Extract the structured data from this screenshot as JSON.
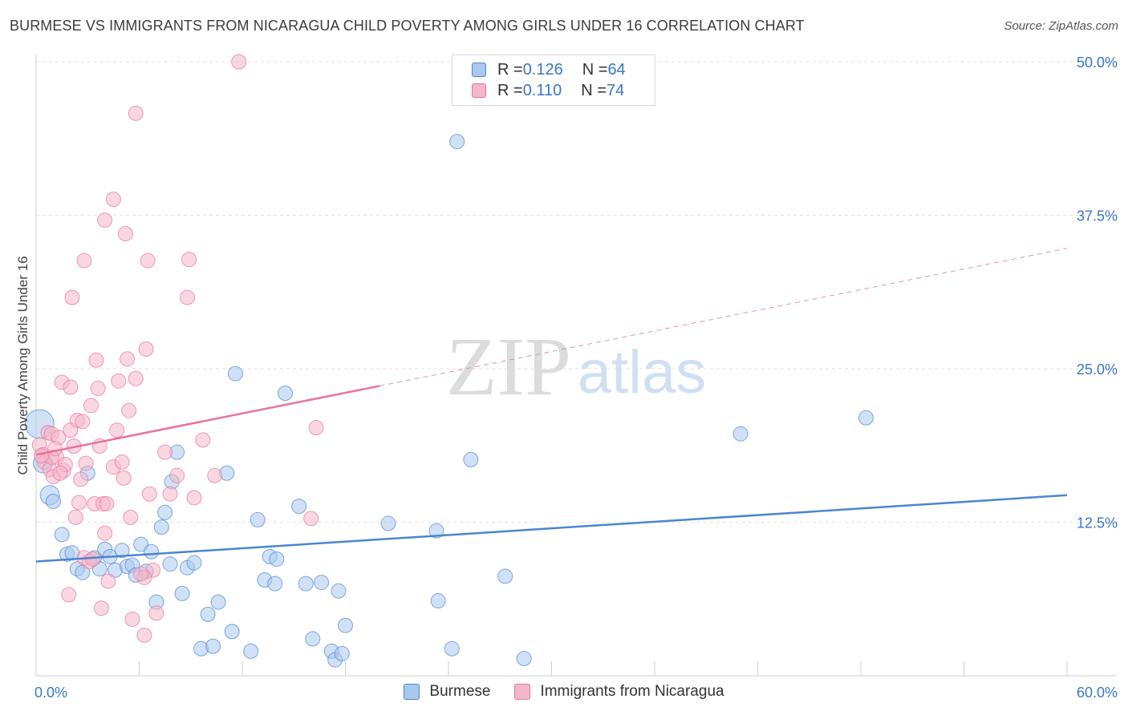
{
  "header": {
    "title": "BURMESE VS IMMIGRANTS FROM NICARAGUA CHILD POVERTY AMONG GIRLS UNDER 16 CORRELATION CHART",
    "source": "Source: ZipAtlas.com"
  },
  "watermark": {
    "zip": "ZIP",
    "atlas": "atlas"
  },
  "legend_stats": [
    {
      "r_label": "R = ",
      "r_value": "0.126",
      "n_label": "N = ",
      "n_value": "64",
      "color": "#a9c8ef"
    },
    {
      "r_label": "R = ",
      "r_value": "0.110",
      "n_label": "N = ",
      "n_value": "74",
      "color": "#f4b6c9"
    }
  ],
  "chart_data": {
    "type": "scatter",
    "title": "BURMESE VS IMMIGRANTS FROM NICARAGUA CHILD POVERTY AMONG GIRLS UNDER 16 CORRELATION CHART",
    "xlabel": "",
    "ylabel": "Child Poverty Among Girls Under 16",
    "xlim": [
      0,
      60
    ],
    "ylim": [
      0,
      50
    ],
    "x_tick_labels": [
      "0.0%",
      "60.0%"
    ],
    "y_ticks": [
      12.5,
      25.0,
      37.5,
      50.0
    ],
    "y_tick_labels": [
      "12.5%",
      "25.0%",
      "37.5%",
      "50.0%"
    ],
    "grid": true,
    "legend_position": "bottom",
    "series": [
      {
        "name": "Burmese",
        "color": "#4a86d0",
        "fill": "#a9c8ef",
        "trend": {
          "x": [
            0,
            60
          ],
          "y": [
            9.3,
            14.7
          ],
          "dashed_extension": false
        },
        "points": [
          [
            0.2,
            20.5
          ],
          [
            0.8,
            14.7
          ],
          [
            1.0,
            14.2
          ],
          [
            1.5,
            11.5
          ],
          [
            1.8,
            9.9
          ],
          [
            2.1,
            10.0
          ],
          [
            2.4,
            8.7
          ],
          [
            2.7,
            8.4
          ],
          [
            3.0,
            16.5
          ],
          [
            3.4,
            9.6
          ],
          [
            3.7,
            8.7
          ],
          [
            4.0,
            10.3
          ],
          [
            4.3,
            9.7
          ],
          [
            4.6,
            8.6
          ],
          [
            5.0,
            10.2
          ],
          [
            5.3,
            8.9
          ],
          [
            5.6,
            9.0
          ],
          [
            5.8,
            8.2
          ],
          [
            6.1,
            10.7
          ],
          [
            6.4,
            8.5
          ],
          [
            6.7,
            10.1
          ],
          [
            7.0,
            6.0
          ],
          [
            7.3,
            12.1
          ],
          [
            7.5,
            13.3
          ],
          [
            7.8,
            9.1
          ],
          [
            7.9,
            15.8
          ],
          [
            8.2,
            18.2
          ],
          [
            8.5,
            6.7
          ],
          [
            8.8,
            8.8
          ],
          [
            9.2,
            9.2
          ],
          [
            9.6,
            2.2
          ],
          [
            10.0,
            5.0
          ],
          [
            10.3,
            2.4
          ],
          [
            10.6,
            6.0
          ],
          [
            11.1,
            16.5
          ],
          [
            11.4,
            3.6
          ],
          [
            11.6,
            24.6
          ],
          [
            12.5,
            2.0
          ],
          [
            12.9,
            12.7
          ],
          [
            13.3,
            7.8
          ],
          [
            13.6,
            9.7
          ],
          [
            13.9,
            7.5
          ],
          [
            14.0,
            9.5
          ],
          [
            14.5,
            23.0
          ],
          [
            15.3,
            13.8
          ],
          [
            15.7,
            7.5
          ],
          [
            16.1,
            3.0
          ],
          [
            16.6,
            7.6
          ],
          [
            17.2,
            2.0
          ],
          [
            17.6,
            6.9
          ],
          [
            18.0,
            4.1
          ],
          [
            17.4,
            1.3
          ],
          [
            17.8,
            1.8
          ],
          [
            20.5,
            12.4
          ],
          [
            23.3,
            11.8
          ],
          [
            23.4,
            6.1
          ],
          [
            24.2,
            2.2
          ],
          [
            24.5,
            43.5
          ],
          [
            25.3,
            17.6
          ],
          [
            27.3,
            8.1
          ],
          [
            28.4,
            1.4
          ],
          [
            41.0,
            19.7
          ],
          [
            48.3,
            21.0
          ],
          [
            0.4,
            17.3
          ]
        ]
      },
      {
        "name": "Immigrants from Nicaragua",
        "color": "#e8739a",
        "fill": "#f4b6c9",
        "trend": {
          "x": [
            0,
            20.0,
            60
          ],
          "y": [
            18.0,
            23.6,
            34.8
          ],
          "dashed_extension": true
        },
        "points": [
          [
            0.2,
            18.8
          ],
          [
            0.4,
            18.0
          ],
          [
            0.5,
            17.4
          ],
          [
            0.7,
            19.8
          ],
          [
            0.8,
            16.8
          ],
          [
            0.9,
            19.7
          ],
          [
            1.0,
            16.2
          ],
          [
            1.2,
            17.8
          ],
          [
            1.3,
            19.4
          ],
          [
            1.5,
            23.9
          ],
          [
            1.6,
            16.7
          ],
          [
            1.7,
            17.2
          ],
          [
            1.9,
            6.6
          ],
          [
            2.0,
            23.5
          ],
          [
            2.0,
            20.0
          ],
          [
            2.1,
            30.8
          ],
          [
            2.2,
            18.7
          ],
          [
            2.3,
            12.9
          ],
          [
            2.4,
            20.8
          ],
          [
            2.5,
            14.1
          ],
          [
            2.7,
            20.7
          ],
          [
            2.8,
            9.6
          ],
          [
            2.8,
            33.8
          ],
          [
            2.9,
            17.3
          ],
          [
            3.1,
            9.3
          ],
          [
            3.2,
            22.0
          ],
          [
            3.4,
            14.0
          ],
          [
            3.5,
            25.7
          ],
          [
            3.6,
            23.4
          ],
          [
            3.7,
            18.7
          ],
          [
            3.8,
            5.5
          ],
          [
            3.9,
            14.0
          ],
          [
            4.0,
            37.1
          ],
          [
            4.0,
            11.6
          ],
          [
            4.2,
            7.7
          ],
          [
            4.5,
            17.0
          ],
          [
            4.5,
            38.8
          ],
          [
            4.7,
            20.0
          ],
          [
            4.8,
            24.0
          ],
          [
            5.0,
            17.4
          ],
          [
            5.1,
            16.1
          ],
          [
            5.2,
            36.0
          ],
          [
            5.3,
            25.8
          ],
          [
            5.4,
            21.6
          ],
          [
            5.5,
            12.9
          ],
          [
            5.6,
            4.6
          ],
          [
            5.8,
            24.2
          ],
          [
            5.8,
            45.8
          ],
          [
            6.3,
            3.3
          ],
          [
            6.4,
            26.6
          ],
          [
            6.5,
            33.8
          ],
          [
            6.6,
            14.8
          ],
          [
            6.8,
            8.6
          ],
          [
            7.0,
            5.1
          ],
          [
            7.5,
            18.2
          ],
          [
            7.8,
            14.8
          ],
          [
            8.2,
            16.3
          ],
          [
            8.8,
            30.8
          ],
          [
            8.9,
            33.9
          ],
          [
            9.2,
            14.5
          ],
          [
            9.7,
            19.2
          ],
          [
            10.4,
            16.3
          ],
          [
            16.3,
            20.2
          ],
          [
            16.0,
            12.8
          ],
          [
            11.8,
            50.0
          ],
          [
            0.9,
            17.8
          ],
          [
            1.1,
            18.5
          ],
          [
            0.3,
            17.9
          ],
          [
            2.6,
            16.0
          ],
          [
            3.3,
            9.5
          ],
          [
            6.3,
            8.0
          ],
          [
            6.1,
            8.3
          ],
          [
            1.4,
            16.5
          ],
          [
            4.1,
            14.0
          ]
        ]
      }
    ]
  }
}
